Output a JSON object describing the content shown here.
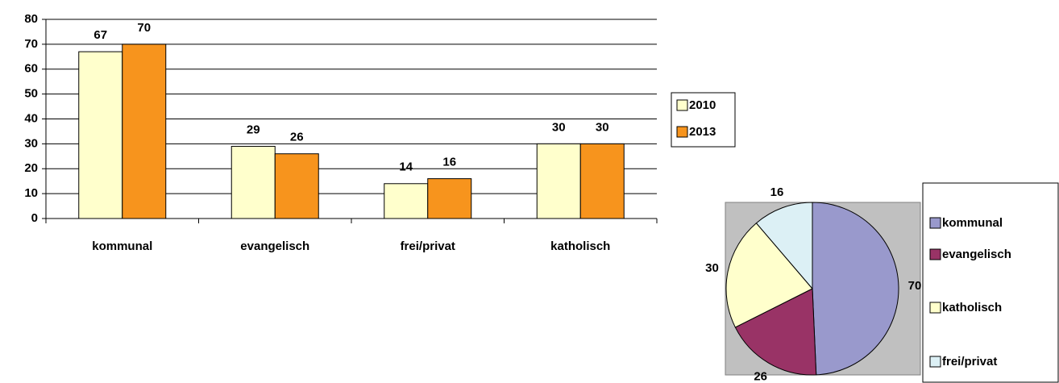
{
  "chart_data": [
    {
      "type": "bar",
      "categories": [
        "kommunal",
        "evangelisch",
        "frei/privat",
        "katholisch"
      ],
      "series": [
        {
          "name": "2010",
          "color": "#ffffcc",
          "values": [
            67,
            29,
            14,
            30
          ]
        },
        {
          "name": "2013",
          "color": "#f7941d",
          "values": [
            70,
            26,
            16,
            30
          ]
        }
      ],
      "ylim": [
        0,
        80
      ],
      "yticks": [
        0,
        10,
        20,
        30,
        40,
        50,
        60,
        70,
        80
      ],
      "grid": true,
      "legend": "right"
    },
    {
      "type": "pie",
      "categories": [
        "kommunal",
        "evangelisch",
        "katholisch",
        "frei/privat"
      ],
      "values": [
        70,
        26,
        30,
        16
      ],
      "colors": [
        "#9999cc",
        "#993366",
        "#ffffcc",
        "#dcf0f5"
      ],
      "legend": "right"
    }
  ]
}
